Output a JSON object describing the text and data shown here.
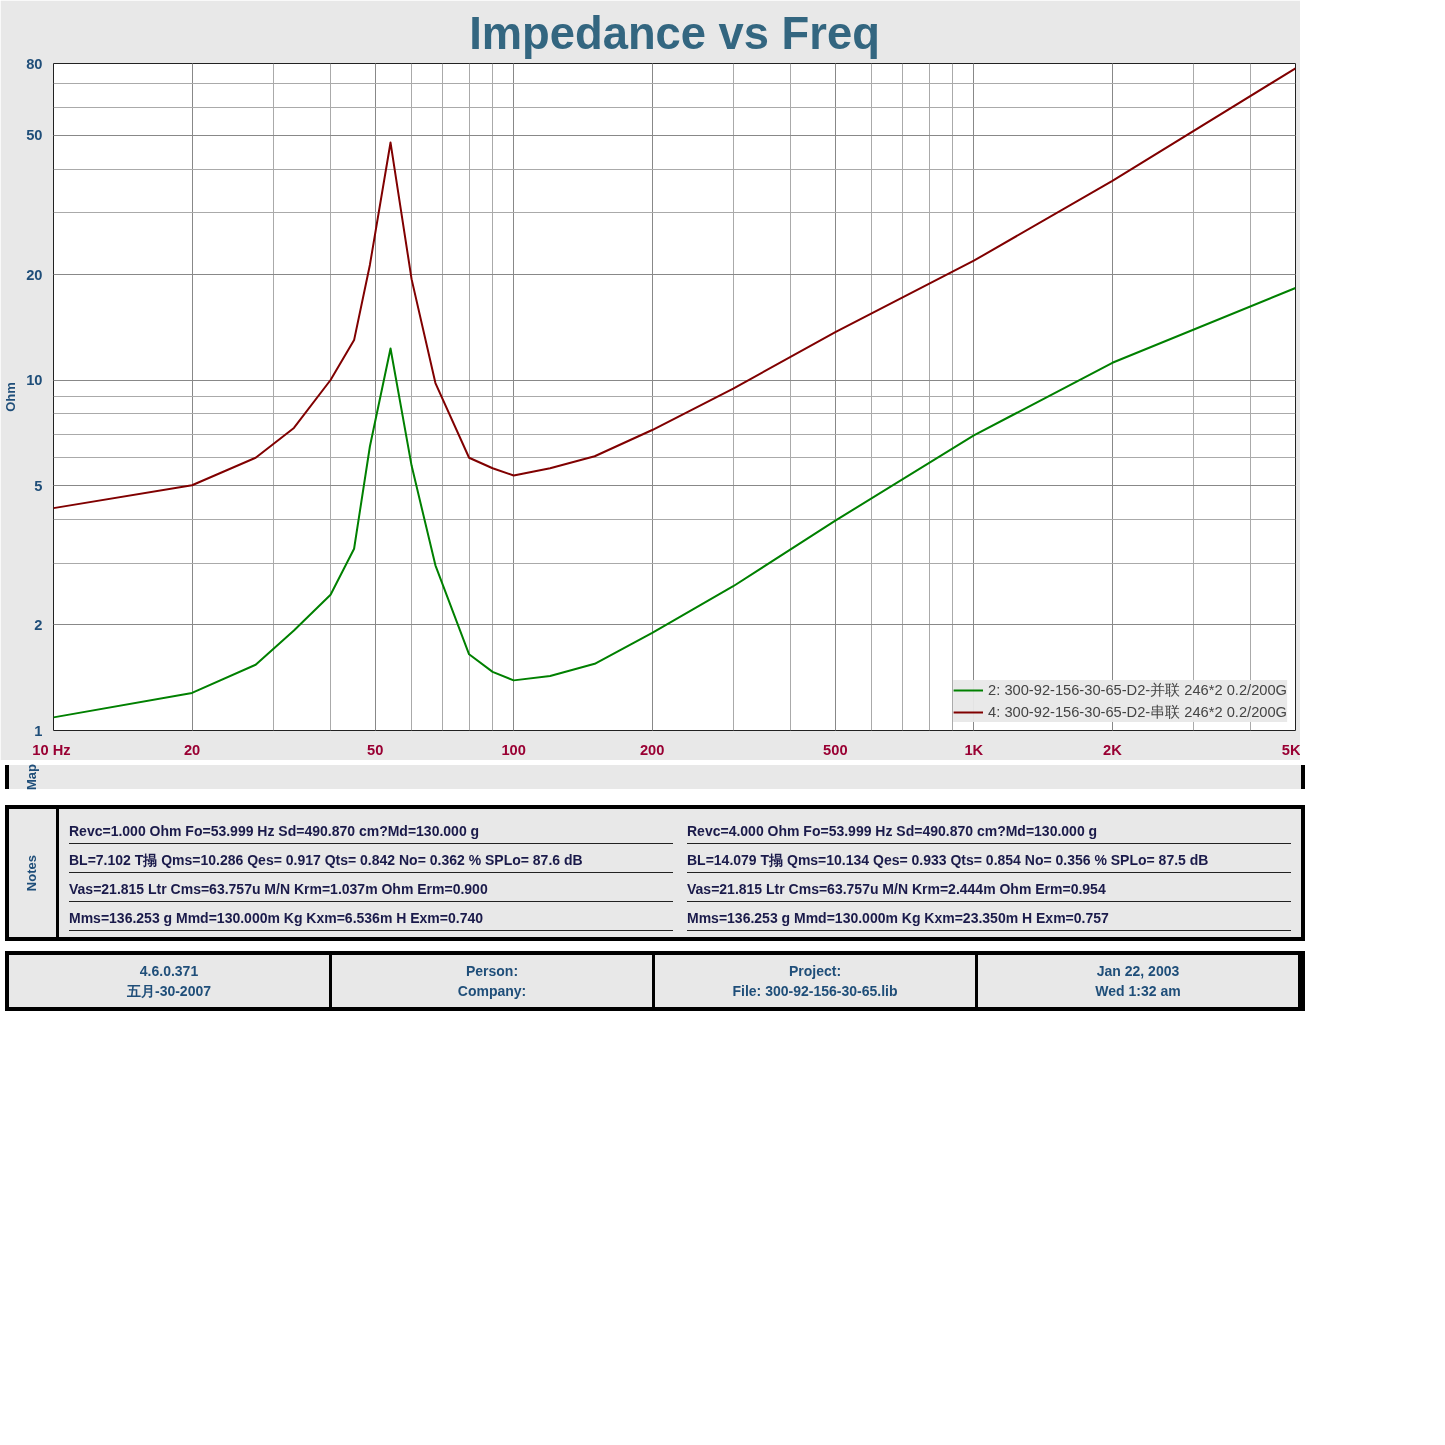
{
  "chart_data": {
    "type": "line",
    "title": "Impedance vs Freq",
    "ylabel": "Ohm",
    "log": "xy",
    "grid": true,
    "legend": "bottom right",
    "marker": "none",
    "line_style": "solid",
    "xlim": [
      10,
      5000
    ],
    "ylim": [
      1,
      80
    ],
    "xticks": [
      {
        "value": 10,
        "label": "10  Hz"
      },
      20,
      50,
      100,
      200,
      500,
      {
        "value": 1000,
        "label": "1K"
      },
      {
        "value": 2000,
        "label": "2K"
      },
      {
        "value": 5000,
        "label": "5K"
      }
    ],
    "yticks": [
      1,
      2,
      5,
      10,
      20,
      50,
      80
    ],
    "x": [
      10,
      20,
      27.5,
      33.3,
      40,
      45,
      48.7,
      54,
      60,
      67.6,
      80,
      90,
      100,
      120,
      150,
      200,
      300,
      500,
      1000,
      2000,
      5000
    ],
    "series": [
      {
        "name": "2: 300-92-156-30-65-D2-并联 246*2 0.2/200G",
        "color": "#008000",
        "values": [
          1.09,
          1.28,
          1.54,
          1.93,
          2.44,
          3.3,
          6.46,
          12.3,
          5.7,
          2.96,
          1.65,
          1.47,
          1.39,
          1.43,
          1.55,
          1.9,
          2.58,
          3.97,
          6.95,
          11.2,
          18.3
        ]
      },
      {
        "name": "4: 300-92-156-30-65-D2-串联 246*2 0.2/200G",
        "color": "#800000",
        "values": [
          4.31,
          5.01,
          6.0,
          7.3,
          10.0,
          13.0,
          21.3,
          47.6,
          19.4,
          9.8,
          6.0,
          5.6,
          5.34,
          5.6,
          6.06,
          7.2,
          9.45,
          13.7,
          21.9,
          37,
          77.5
        ]
      }
    ],
    "annotations": [
      "Revc=1.000 Ohm  Fo=53.999 Hz  Sd=490.870 cm?Md=130.000 g",
      "BL=7.102 T搨  Qms=10.286  Qes= 0.917  Qts= 0.842  No= 0.362 %  SPLo= 87.6 dB",
      "Vas=21.815 Ltr  Cms=63.757u M/N  Krm=1.037m Ohm  Erm=0.900",
      "Mms=136.253 g  Mmd=130.000m Kg  Kxm=6.536m H  Exm=0.740",
      "Revc=4.000 Ohm  Fo=53.999 Hz  Sd=490.870 cm?Md=130.000 g",
      "BL=14.079 T搨  Qms=10.134  Qes= 0.933  Qts= 0.854  No= 0.356 %  SPLo= 87.5 dB",
      "Vas=21.815 Ltr  Cms=63.757u M/N  Krm=2.444m Ohm  Erm=0.954",
      "Mms=136.253 g  Mmd=130.000m Kg  Kxm=23.350m H  Exm=0.757",
      "Map",
      "Notes",
      "4.6.0.371",
      "五月-30-2007",
      "Person:",
      "Company:",
      "Project:",
      "File: 300-92-156-30-65.lib",
      "Jan 22, 2003",
      "Wed  1:32 am"
    ]
  }
}
